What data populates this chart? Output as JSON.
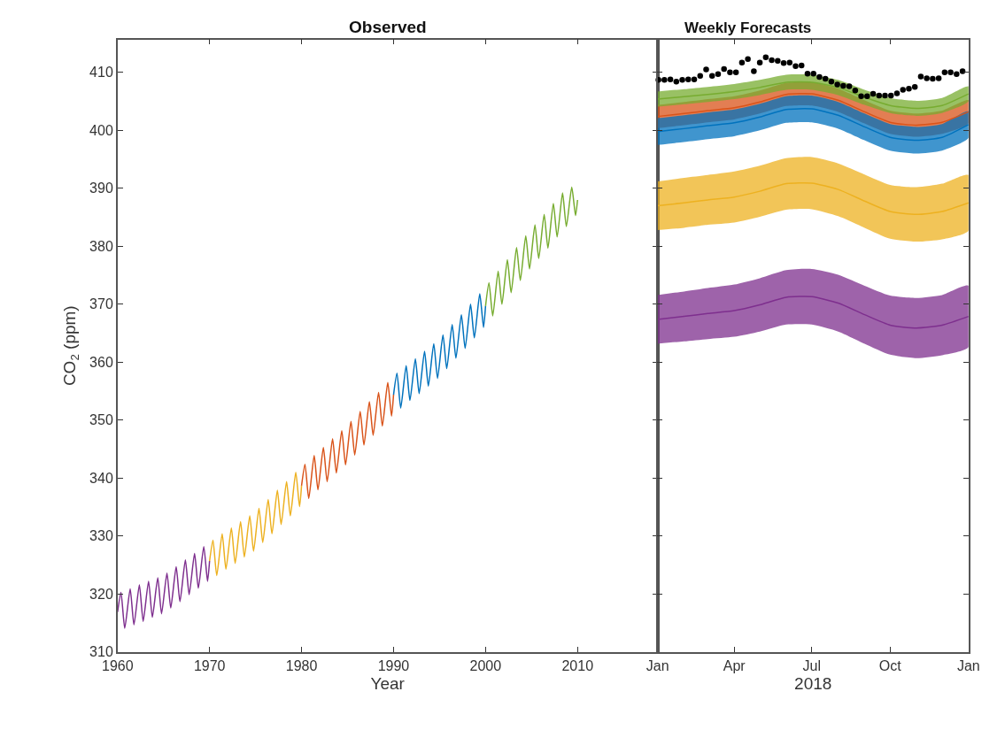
{
  "chart_data": [
    {
      "type": "line",
      "title": "Observed",
      "xlabel": "Year",
      "ylabel": "CO$_{2}$ (ppm)",
      "xlim": [
        1960,
        2018.7
      ],
      "xticks": [
        1960,
        1970,
        1980,
        1990,
        2000,
        2010
      ],
      "ylim": [
        310,
        415.7
      ],
      "yticks": [
        310,
        320,
        330,
        340,
        350,
        360,
        370,
        380,
        390,
        400,
        410
      ],
      "series": [
        {
          "color": "#7e2f8e",
          "x": [
            1960,
            1960.37,
            1960.78,
            1961.37,
            1961.78,
            1962.37,
            1962.78,
            1963.37,
            1963.78,
            1964.37,
            1964.78,
            1965.37,
            1965.78,
            1966.37,
            1966.78,
            1967.37,
            1967.78,
            1968.37,
            1968.78,
            1969.37,
            1969.78,
            1970
          ],
          "values": [
            316.9,
            320.3,
            314.1,
            320.9,
            314.7,
            321.6,
            315.3,
            322.2,
            316.0,
            322.8,
            316.6,
            323.6,
            317.6,
            324.7,
            318.7,
            325.9,
            319.9,
            327.0,
            321.0,
            328.2,
            322.2,
            325.7
          ]
        },
        {
          "color": "#edb120",
          "x": [
            1970,
            1970.37,
            1970.78,
            1971.37,
            1971.78,
            1972.37,
            1972.78,
            1973.37,
            1973.78,
            1974.37,
            1974.78,
            1975.37,
            1975.78,
            1976.37,
            1976.78,
            1977.37,
            1977.78,
            1978.37,
            1978.78,
            1979.37,
            1979.78,
            1980
          ],
          "values": [
            325.7,
            329.3,
            323.2,
            330.4,
            324.3,
            331.4,
            325.3,
            332.5,
            326.4,
            333.5,
            327.4,
            334.8,
            328.9,
            336.3,
            330.4,
            337.9,
            332.0,
            339.4,
            333.5,
            341.0,
            335.1,
            338.7
          ]
        },
        {
          "color": "#d95319",
          "x": [
            1980,
            1980.37,
            1980.78,
            1981.37,
            1981.78,
            1982.37,
            1982.78,
            1983.37,
            1983.78,
            1984.37,
            1984.78,
            1985.37,
            1985.78,
            1986.37,
            1986.78,
            1987.37,
            1987.78,
            1988.37,
            1988.78,
            1989.37,
            1989.78,
            1990
          ],
          "values": [
            338.7,
            342.4,
            336.5,
            343.9,
            338.0,
            345.3,
            339.4,
            346.8,
            340.9,
            348.2,
            342.3,
            349.8,
            344.0,
            351.5,
            345.7,
            353.2,
            347.4,
            354.8,
            349.0,
            356.5,
            350.7,
            354.4
          ]
        },
        {
          "color": "#0072bd",
          "x": [
            1990,
            1990.37,
            1990.78,
            1991.37,
            1991.78,
            1992.37,
            1992.78,
            1993.37,
            1993.78,
            1994.37,
            1994.78,
            1995.37,
            1995.78,
            1996.37,
            1996.78,
            1997.37,
            1997.78,
            1998.37,
            1998.78,
            1999.37,
            1999.78,
            2000
          ],
          "values": [
            354.4,
            358.1,
            352.1,
            359.4,
            353.4,
            360.6,
            354.6,
            361.9,
            355.9,
            363.2,
            357.2,
            364.7,
            358.9,
            366.5,
            360.7,
            368.2,
            362.4,
            370.0,
            364.2,
            371.8,
            366.0,
            369.7
          ]
        },
        {
          "color": "#77ac30",
          "x": [
            2000,
            2000.37,
            2000.78,
            2001.37,
            2001.78,
            2002.37,
            2002.78,
            2003.37,
            2003.78,
            2004.37,
            2004.78,
            2005.37,
            2005.78,
            2006.37,
            2006.78,
            2007.37,
            2007.78,
            2008.37,
            2008.78,
            2009.37,
            2009.78,
            2010
          ],
          "values": [
            369.7,
            373.7,
            368.0,
            375.7,
            370.0,
            377.7,
            372.0,
            379.8,
            374.1,
            381.8,
            376.1,
            383.7,
            377.9,
            385.5,
            379.7,
            387.4,
            381.6,
            389.2,
            383.4,
            390.2,
            385.3,
            388.0
          ]
        }
      ]
    },
    {
      "type": "line",
      "title": "Weekly Forecasts",
      "xlabel": "2018",
      "xlim": [
        "2018-01-01",
        "2019-01-01"
      ],
      "xticks": [
        {
          "value": "2018-01-01",
          "label": "Jan"
        },
        {
          "value": "2018-04-01",
          "label": "Apr"
        },
        {
          "value": "2018-07-01",
          "label": "Jul"
        },
        {
          "value": "2018-10-01",
          "label": "Oct"
        },
        {
          "value": "2019-01-01",
          "label": "Jan"
        }
      ],
      "ylim": [
        310,
        415.7
      ],
      "yticks": [
        310,
        320,
        330,
        340,
        350,
        360,
        370,
        380,
        390,
        400,
        410
      ],
      "tick_labels": "x",
      "x": [
        "2018-01-01",
        "2018-02-01",
        "2018-03-01",
        "2018-04-01",
        "2018-05-01",
        "2018-06-01",
        "2018-07-01",
        "2018-08-01",
        "2018-09-01",
        "2018-10-01",
        "2018-11-01",
        "2018-12-01",
        "2019-01-01"
      ],
      "series": [
        {
          "color": "#7e2f8e",
          "values": [
            367.4,
            367.9,
            368.4,
            368.9,
            369.9,
            371.2,
            371.3,
            370.2,
            368.2,
            366.4,
            365.9,
            366.4,
            367.9
          ],
          "lower": [
            363.2,
            363.6,
            364.0,
            364.4,
            365.3,
            366.5,
            366.5,
            365.3,
            363.2,
            361.3,
            360.7,
            361.2,
            362.6
          ],
          "upper": [
            371.6,
            372.2,
            372.8,
            373.4,
            374.5,
            375.9,
            376.1,
            375.1,
            373.2,
            371.5,
            371.1,
            371.6,
            373.2
          ]
        },
        {
          "color": "#edb120",
          "values": [
            387.0,
            387.5,
            388.0,
            388.5,
            389.5,
            390.8,
            390.9,
            389.8,
            387.8,
            386.0,
            385.5,
            386.0,
            387.5
          ],
          "lower": [
            382.8,
            383.2,
            383.7,
            384.1,
            385.1,
            386.3,
            386.4,
            385.2,
            383.2,
            381.3,
            380.8,
            381.2,
            382.7
          ],
          "upper": [
            391.2,
            391.8,
            392.3,
            392.9,
            393.9,
            395.2,
            395.4,
            394.3,
            392.4,
            390.6,
            390.2,
            390.8,
            392.3
          ]
        },
        {
          "color": "#d95319",
          "values": [
            402.4,
            402.9,
            403.4,
            403.9,
            404.9,
            406.2,
            406.3,
            405.2,
            403.2,
            401.4,
            400.9,
            401.4,
            403.2
          ],
          "lower": [
            400.4,
            400.9,
            401.4,
            401.9,
            402.9,
            404.2,
            404.3,
            403.2,
            401.2,
            399.4,
            398.9,
            399.4,
            401.2
          ],
          "upper": [
            404.4,
            404.9,
            405.4,
            405.9,
            406.9,
            408.2,
            408.3,
            407.2,
            405.2,
            403.4,
            402.9,
            403.4,
            405.2
          ]
        },
        {
          "color": "#0072bd",
          "values": [
            399.8,
            400.3,
            400.8,
            401.3,
            402.3,
            403.6,
            403.7,
            402.6,
            400.6,
            398.8,
            398.3,
            398.8,
            401.0
          ],
          "lower": [
            397.5,
            398.0,
            398.5,
            399.0,
            400.0,
            401.3,
            401.4,
            400.3,
            398.3,
            396.5,
            396.0,
            396.5,
            398.7
          ],
          "upper": [
            402.1,
            402.6,
            403.1,
            403.6,
            404.6,
            405.9,
            406.0,
            404.9,
            402.9,
            401.1,
            400.6,
            401.1,
            403.3
          ]
        },
        {
          "color": "#77ac30",
          "values": [
            405.4,
            405.8,
            406.2,
            406.7,
            407.4,
            408.3,
            408.3,
            407.4,
            405.7,
            404.3,
            403.8,
            404.3,
            406.3
          ],
          "lower": [
            404.1,
            404.5,
            404.9,
            405.4,
            406.1,
            407.0,
            407.0,
            406.1,
            404.4,
            403.0,
            402.5,
            403.0,
            405.0
          ],
          "upper": [
            406.7,
            407.1,
            407.5,
            408.0,
            408.7,
            409.6,
            409.6,
            408.7,
            407.0,
            405.6,
            405.1,
            405.6,
            407.6
          ]
        },
        {
          "type": "scatter",
          "marker": "circle",
          "color": "#000000",
          "x": [
            "2018-01-02",
            "2018-01-09",
            "2018-01-16",
            "2018-01-23",
            "2018-01-30",
            "2018-02-06",
            "2018-02-13",
            "2018-02-20",
            "2018-02-27",
            "2018-03-06",
            "2018-03-13",
            "2018-03-20",
            "2018-03-27",
            "2018-04-03",
            "2018-04-10",
            "2018-04-17",
            "2018-04-24",
            "2018-05-01",
            "2018-05-08",
            "2018-05-15",
            "2018-05-22",
            "2018-05-29",
            "2018-06-05",
            "2018-06-12",
            "2018-06-19",
            "2018-06-26",
            "2018-07-03",
            "2018-07-10",
            "2018-07-17",
            "2018-07-24",
            "2018-07-31",
            "2018-08-07",
            "2018-08-14",
            "2018-08-21",
            "2018-08-28",
            "2018-09-04",
            "2018-09-11",
            "2018-09-18",
            "2018-09-25",
            "2018-10-02",
            "2018-10-09",
            "2018-10-16",
            "2018-10-23",
            "2018-10-30",
            "2018-11-06",
            "2018-11-13",
            "2018-11-20",
            "2018-11-27",
            "2018-12-04",
            "2018-12-11",
            "2018-12-18",
            "2018-12-25"
          ],
          "values": [
            408.7,
            408.7,
            408.8,
            408.4,
            408.7,
            408.8,
            408.8,
            409.4,
            410.5,
            409.4,
            409.7,
            410.6,
            410.0,
            410.0,
            411.7,
            412.3,
            410.2,
            411.7,
            412.6,
            412.1,
            412.0,
            411.6,
            411.7,
            411.1,
            411.2,
            409.8,
            409.8,
            409.2,
            408.9,
            408.4,
            407.9,
            407.7,
            407.6,
            406.9,
            405.9,
            405.9,
            406.3,
            406.0,
            406.0,
            406.0,
            406.4,
            407.0,
            407.2,
            407.5,
            409.3,
            409.0,
            408.9,
            409.0,
            410.0,
            410.0,
            409.7,
            410.2
          ]
        }
      ]
    }
  ]
}
